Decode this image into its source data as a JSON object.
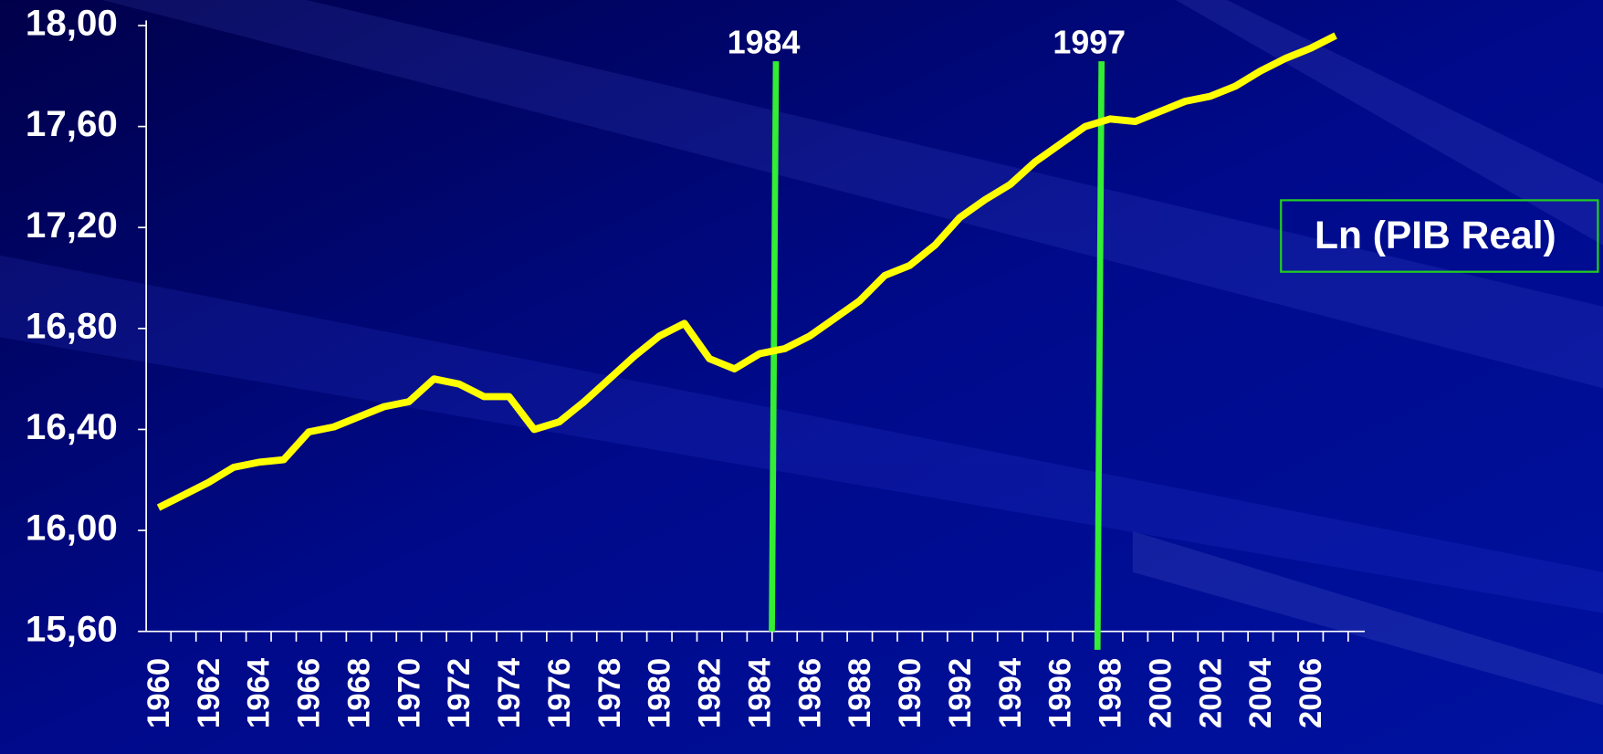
{
  "chart_data": {
    "type": "line",
    "categories": [
      "1960",
      null,
      "1962",
      null,
      "1964",
      null,
      "1966",
      null,
      "1968",
      null,
      "1970",
      null,
      "1972",
      null,
      "1974",
      null,
      "1976",
      null,
      "1978",
      null,
      "1980",
      null,
      "1982",
      null,
      "1984",
      null,
      "1986",
      null,
      "1988",
      null,
      "1990",
      null,
      "1992",
      null,
      "1994",
      null,
      "1996",
      null,
      "1998",
      null,
      "2000",
      null,
      "2002",
      null,
      "2004",
      null,
      "2006",
      null
    ],
    "series": [
      {
        "name": "Ln (PIB Real)",
        "color": "#ffff00",
        "values": [
          16.09,
          16.14,
          16.19,
          16.25,
          16.27,
          16.28,
          16.39,
          16.41,
          16.45,
          16.49,
          16.51,
          16.6,
          16.58,
          16.53,
          16.53,
          16.4,
          16.43,
          16.51,
          16.6,
          16.69,
          16.77,
          16.82,
          16.68,
          16.64,
          16.7,
          16.72,
          16.77,
          16.84,
          16.91,
          17.01,
          17.05,
          17.13,
          17.24,
          17.31,
          17.37,
          17.46,
          17.53,
          17.6,
          17.63,
          17.62,
          17.66,
          17.7,
          17.72,
          17.76,
          17.82,
          17.87,
          17.91,
          17.96
        ]
      }
    ],
    "ylim": [
      15.6,
      18.0
    ],
    "yticks": [
      {
        "value": 15.6,
        "label": "15,60"
      },
      {
        "value": 16.0,
        "label": "16,00"
      },
      {
        "value": 16.4,
        "label": "16,40"
      },
      {
        "value": 16.8,
        "label": "16,80"
      },
      {
        "value": 17.2,
        "label": "17,20"
      },
      {
        "value": 17.6,
        "label": "17,60"
      },
      {
        "value": 18.0,
        "label": "18,00"
      }
    ],
    "annotations": [
      {
        "text": "1984",
        "x": 1984,
        "color": "#33ee33"
      },
      {
        "text": "1997",
        "x": 1997,
        "color": "#33ee33"
      }
    ]
  }
}
